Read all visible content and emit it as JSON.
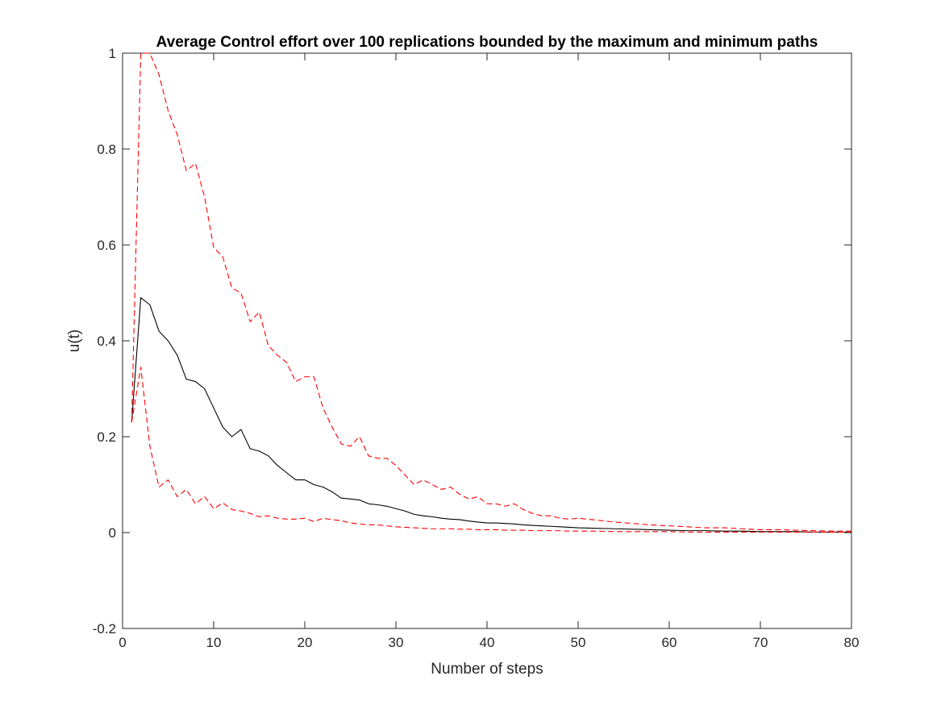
{
  "chart_data": {
    "type": "line",
    "title": "Average Control effort over 100 replications bounded by the maximum and minimum paths",
    "xlabel": "Number of steps",
    "ylabel": "u(t)",
    "xlim": [
      0,
      80
    ],
    "ylim": [
      -0.2,
      1
    ],
    "xticks": [
      0,
      10,
      20,
      30,
      40,
      50,
      60,
      70,
      80
    ],
    "yticks": [
      -0.2,
      0,
      0.2,
      0.4,
      0.6,
      0.8,
      1
    ],
    "xtick_labels": [
      "0",
      "10",
      "20",
      "30",
      "40",
      "50",
      "60",
      "70",
      "80"
    ],
    "ytick_labels": [
      "-0.2",
      "0",
      "0.2",
      "0.4",
      "0.6",
      "0.8",
      "1"
    ],
    "grid": false,
    "legend": "none",
    "series": [
      {
        "style": "solid",
        "color": "#000000",
        "x": [
          1,
          2,
          3,
          4,
          5,
          6,
          7,
          8,
          9,
          10,
          11,
          12,
          13,
          14,
          15,
          16,
          17,
          18,
          19,
          20,
          21,
          22,
          23,
          24,
          25,
          26,
          27,
          28,
          29,
          30,
          31,
          32,
          33,
          34,
          35,
          36,
          37,
          38,
          39,
          40,
          41,
          42,
          43,
          44,
          45,
          46,
          47,
          48,
          49,
          50,
          52,
          54,
          56,
          58,
          60,
          62,
          64,
          66,
          68,
          70,
          72,
          74,
          76,
          78,
          80
        ],
        "y": [
          0.23,
          0.49,
          0.475,
          0.42,
          0.4,
          0.37,
          0.32,
          0.315,
          0.3,
          0.26,
          0.22,
          0.2,
          0.215,
          0.175,
          0.17,
          0.16,
          0.14,
          0.125,
          0.11,
          0.11,
          0.1,
          0.095,
          0.085,
          0.072,
          0.07,
          0.068,
          0.06,
          0.058,
          0.055,
          0.05,
          0.045,
          0.038,
          0.035,
          0.033,
          0.03,
          0.028,
          0.027,
          0.024,
          0.022,
          0.02,
          0.02,
          0.019,
          0.018,
          0.016,
          0.015,
          0.014,
          0.013,
          0.012,
          0.011,
          0.01,
          0.009,
          0.008,
          0.007,
          0.006,
          0.005,
          0.004,
          0.004,
          0.003,
          0.003,
          0.002,
          0.002,
          0.002,
          0.001,
          0.001,
          0.001
        ]
      },
      {
        "style": "dashed",
        "color": "#ff0000",
        "x": [
          1,
          2,
          3,
          4,
          5,
          6,
          7,
          8,
          9,
          10,
          11,
          12,
          13,
          14,
          15,
          16,
          17,
          18,
          19,
          20,
          21,
          22,
          23,
          24,
          25,
          26,
          27,
          28,
          29,
          30,
          31,
          32,
          33,
          34,
          35,
          36,
          37,
          38,
          39,
          40,
          41,
          42,
          43,
          44,
          45,
          46,
          47,
          48,
          49,
          50,
          52,
          54,
          56,
          58,
          60,
          62,
          64,
          66,
          68,
          70,
          72,
          74,
          76,
          78,
          80
        ],
        "y": [
          0.23,
          1.0,
          1.0,
          0.955,
          0.88,
          0.83,
          0.755,
          0.77,
          0.7,
          0.595,
          0.575,
          0.51,
          0.5,
          0.44,
          0.46,
          0.39,
          0.37,
          0.355,
          0.315,
          0.325,
          0.325,
          0.26,
          0.22,
          0.185,
          0.18,
          0.2,
          0.16,
          0.155,
          0.155,
          0.14,
          0.12,
          0.1,
          0.11,
          0.1,
          0.09,
          0.095,
          0.08,
          0.07,
          0.075,
          0.06,
          0.06,
          0.055,
          0.06,
          0.048,
          0.04,
          0.035,
          0.035,
          0.03,
          0.028,
          0.03,
          0.026,
          0.022,
          0.019,
          0.016,
          0.014,
          0.012,
          0.01,
          0.01,
          0.008,
          0.006,
          0.006,
          0.005,
          0.004,
          0.003,
          0.003
        ]
      },
      {
        "style": "dashed",
        "color": "#ff0000",
        "x": [
          1,
          2,
          3,
          4,
          5,
          6,
          7,
          8,
          9,
          10,
          11,
          12,
          13,
          14,
          15,
          16,
          17,
          18,
          19,
          20,
          21,
          22,
          23,
          24,
          25,
          26,
          27,
          28,
          29,
          30,
          31,
          32,
          33,
          34,
          35,
          36,
          37,
          38,
          39,
          40,
          41,
          42,
          43,
          44,
          45,
          46,
          47,
          48,
          49,
          50,
          52,
          54,
          56,
          58,
          60,
          62,
          64,
          66,
          68,
          70,
          72,
          74,
          76,
          78,
          80
        ],
        "y": [
          0.23,
          0.345,
          0.18,
          0.095,
          0.11,
          0.075,
          0.09,
          0.06,
          0.075,
          0.05,
          0.062,
          0.048,
          0.045,
          0.04,
          0.033,
          0.035,
          0.03,
          0.028,
          0.028,
          0.03,
          0.023,
          0.03,
          0.027,
          0.025,
          0.02,
          0.018,
          0.016,
          0.016,
          0.014,
          0.012,
          0.011,
          0.01,
          0.009,
          0.008,
          0.008,
          0.008,
          0.007,
          0.007,
          0.006,
          0.006,
          0.006,
          0.005,
          0.005,
          0.005,
          0.004,
          0.004,
          0.004,
          0.004,
          0.003,
          0.003,
          0.003,
          0.002,
          0.002,
          0.002,
          0.002,
          0.001,
          0.001,
          0.001,
          0.001,
          0.001,
          0.001,
          0.001,
          0.001,
          0.001,
          0.001
        ]
      }
    ]
  }
}
